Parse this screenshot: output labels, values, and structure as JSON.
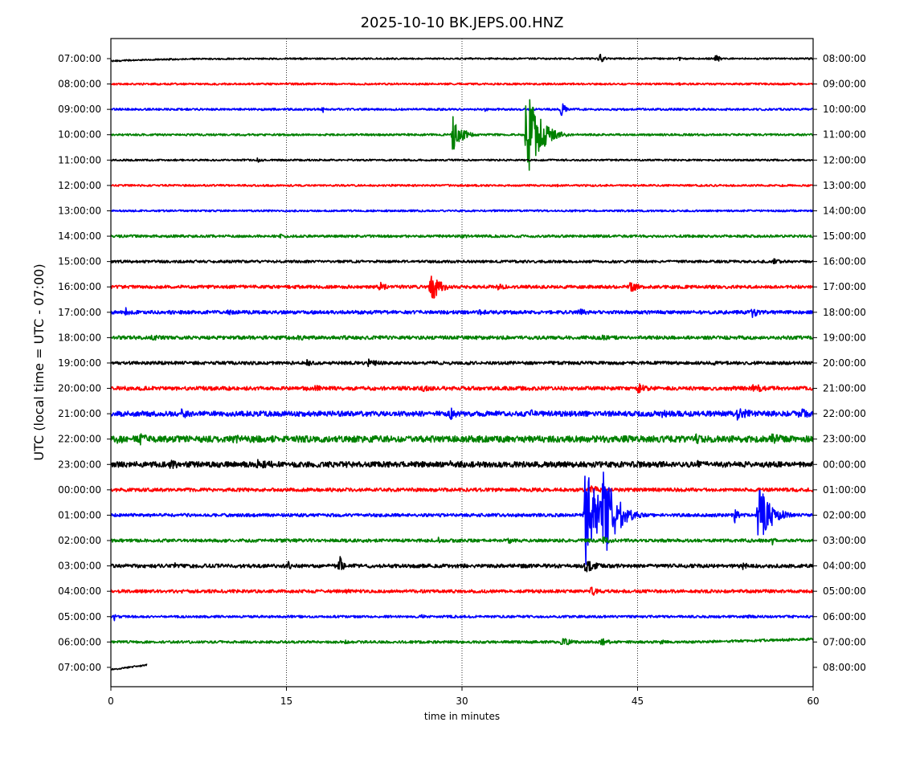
{
  "chart_data": {
    "type": "line",
    "title": "2025-10-10 BK.JEPS.00.HNZ",
    "xlabel": "time in minutes",
    "ylabel": "UTC (local time = UTC - 07:00)",
    "xlim": [
      0,
      60
    ],
    "xticks": [
      0,
      15,
      30,
      45,
      60
    ],
    "grid": "vertical dotted lines at 15, 30, 45",
    "trace_colors": [
      "#000000",
      "#ff0000",
      "#0000ff",
      "#008000"
    ],
    "left_labels": [
      "07:00:00",
      "08:00:00",
      "09:00:00",
      "10:00:00",
      "11:00:00",
      "12:00:00",
      "13:00:00",
      "14:00:00",
      "15:00:00",
      "16:00:00",
      "17:00:00",
      "18:00:00",
      "19:00:00",
      "20:00:00",
      "21:00:00",
      "22:00:00",
      "23:00:00",
      "00:00:00",
      "01:00:00",
      "02:00:00",
      "03:00:00",
      "04:00:00",
      "05:00:00",
      "06:00:00",
      "07:00:00"
    ],
    "right_labels": [
      "08:00:00",
      "09:00:00",
      "10:00:00",
      "11:00:00",
      "12:00:00",
      "13:00:00",
      "14:00:00",
      "15:00:00",
      "16:00:00",
      "17:00:00",
      "18:00:00",
      "19:00:00",
      "20:00:00",
      "21:00:00",
      "22:00:00",
      "23:00:00",
      "00:00:00",
      "01:00:00",
      "02:00:00",
      "03:00:00",
      "04:00:00",
      "05:00:00",
      "06:00:00",
      "07:00:00",
      "08:00:00"
    ],
    "series": [
      {
        "hour": "07:00:00",
        "end_minute": 60,
        "noise": 1.0,
        "drift": "rising",
        "events": [
          {
            "t": 41.7,
            "amp": 8,
            "dur": 0.6
          },
          {
            "t": 48.5,
            "amp": 4,
            "dur": 0.3
          },
          {
            "t": 51.7,
            "amp": 8,
            "dur": 0.4
          }
        ]
      },
      {
        "hour": "08:00:00",
        "end_minute": 60,
        "noise": 1.2,
        "events": [
          {
            "t": 48.6,
            "amp": 2,
            "dur": 0.3
          }
        ]
      },
      {
        "hour": "09:00:00",
        "end_minute": 60,
        "noise": 1.3,
        "events": [
          {
            "t": 18.1,
            "amp": 5,
            "dur": 0.3
          },
          {
            "t": 32.0,
            "amp": 4,
            "dur": 0.3
          },
          {
            "t": 38.5,
            "amp": 15,
            "dur": 0.4
          }
        ]
      },
      {
        "hour": "10:00:00",
        "end_minute": 60,
        "noise": 1.3,
        "events": [
          {
            "t": 29.2,
            "amp": 26,
            "dur": 1.0
          },
          {
            "t": 35.5,
            "amp": 64,
            "dur": 1.5
          }
        ]
      },
      {
        "hour": "11:00:00",
        "end_minute": 60,
        "noise": 1.1,
        "events": [
          {
            "t": 12.5,
            "amp": 3,
            "dur": 1.0
          }
        ]
      },
      {
        "hour": "12:00:00",
        "end_minute": 60,
        "noise": 1.2,
        "events": [
          {
            "t": 38.0,
            "amp": 4,
            "dur": 0.3
          }
        ]
      },
      {
        "hour": "13:00:00",
        "end_minute": 60,
        "noise": 1.2,
        "events": []
      },
      {
        "hour": "14:00:00",
        "end_minute": 60,
        "noise": 1.6,
        "events": [
          {
            "t": 14.5,
            "amp": 4,
            "dur": 0.3
          },
          {
            "t": 30.0,
            "amp": 3,
            "dur": 1.5
          }
        ]
      },
      {
        "hour": "15:00:00",
        "end_minute": 60,
        "noise": 1.6,
        "events": [
          {
            "t": 56.5,
            "amp": 4,
            "dur": 1.5
          }
        ]
      },
      {
        "hour": "16:00:00",
        "end_minute": 60,
        "noise": 2.0,
        "events": [
          {
            "t": 16.0,
            "amp": 3,
            "dur": 1.0
          },
          {
            "t": 23.0,
            "amp": 8,
            "dur": 0.8
          },
          {
            "t": 27.3,
            "amp": 20,
            "dur": 1.2
          },
          {
            "t": 33.0,
            "amp": 4,
            "dur": 2.5
          },
          {
            "t": 44.3,
            "amp": 7,
            "dur": 1.5
          },
          {
            "t": 51.0,
            "amp": 4,
            "dur": 1.0
          }
        ]
      },
      {
        "hour": "17:00:00",
        "end_minute": 60,
        "noise": 2.2,
        "events": [
          {
            "t": 1.3,
            "amp": 8,
            "dur": 0.4
          },
          {
            "t": 10.0,
            "amp": 4,
            "dur": 1.0
          },
          {
            "t": 31.5,
            "amp": 5,
            "dur": 1.0
          },
          {
            "t": 40.0,
            "amp": 5,
            "dur": 1.5
          },
          {
            "t": 54.8,
            "amp": 7,
            "dur": 1.0
          }
        ]
      },
      {
        "hour": "18:00:00",
        "end_minute": 60,
        "noise": 2.2,
        "events": [
          {
            "t": 3.5,
            "amp": 4,
            "dur": 2.0
          },
          {
            "t": 16.0,
            "amp": 4,
            "dur": 1.5
          },
          {
            "t": 19.5,
            "amp": 4,
            "dur": 1.5
          },
          {
            "t": 42.0,
            "amp": 4,
            "dur": 1.5
          }
        ]
      },
      {
        "hour": "19:00:00",
        "end_minute": 60,
        "noise": 2.0,
        "events": [
          {
            "t": 16.8,
            "amp": 6,
            "dur": 0.5
          },
          {
            "t": 22.0,
            "amp": 5,
            "dur": 2.0
          },
          {
            "t": 42.0,
            "amp": 3,
            "dur": 1.5
          },
          {
            "t": 51.5,
            "amp": 4,
            "dur": 0.5
          }
        ]
      },
      {
        "hour": "20:00:00",
        "end_minute": 60,
        "noise": 2.4,
        "events": [
          {
            "t": 16.5,
            "amp": 4,
            "dur": 1.5
          },
          {
            "t": 17.5,
            "amp": 7,
            "dur": 0.6
          },
          {
            "t": 26.5,
            "amp": 5,
            "dur": 1.5
          },
          {
            "t": 45.0,
            "amp": 7,
            "dur": 1.5
          },
          {
            "t": 54.8,
            "amp": 6,
            "dur": 2.5
          }
        ]
      },
      {
        "hour": "21:00:00",
        "end_minute": 60,
        "noise": 3.2,
        "events": [
          {
            "t": 6.0,
            "amp": 7,
            "dur": 1.5
          },
          {
            "t": 29.0,
            "amp": 8,
            "dur": 1.0
          },
          {
            "t": 35.8,
            "amp": 7,
            "dur": 1.0
          },
          {
            "t": 47.0,
            "amp": 6,
            "dur": 1.5
          },
          {
            "t": 53.5,
            "amp": 8,
            "dur": 2.5
          },
          {
            "t": 58.8,
            "amp": 9,
            "dur": 1.5
          }
        ]
      },
      {
        "hour": "22:00:00",
        "end_minute": 60,
        "noise": 4.0,
        "events": [
          {
            "t": 0.5,
            "amp": 8,
            "dur": 1.5
          },
          {
            "t": 2.5,
            "amp": 8,
            "dur": 1.5
          },
          {
            "t": 10.5,
            "amp": 8,
            "dur": 1.0
          },
          {
            "t": 11.8,
            "amp": 9,
            "dur": 1.0
          },
          {
            "t": 50.0,
            "amp": 7,
            "dur": 1.0
          },
          {
            "t": 56.5,
            "amp": 7,
            "dur": 2.5
          }
        ]
      },
      {
        "hour": "23:00:00",
        "end_minute": 60,
        "noise": 3.5,
        "events": [
          {
            "t": 5.0,
            "amp": 7,
            "dur": 2.0
          },
          {
            "t": 12.5,
            "amp": 8,
            "dur": 2.5
          },
          {
            "t": 20.0,
            "amp": 6,
            "dur": 1.0
          },
          {
            "t": 29.0,
            "amp": 5,
            "dur": 1.5
          },
          {
            "t": 45.0,
            "amp": 5,
            "dur": 1.5
          },
          {
            "t": 50.0,
            "amp": 6,
            "dur": 1.0
          }
        ]
      },
      {
        "hour": "00:00:00",
        "end_minute": 60,
        "noise": 2.2,
        "events": [
          {
            "t": 41.0,
            "amp": 6,
            "dur": 2.0
          }
        ]
      },
      {
        "hour": "01:00:00",
        "end_minute": 60,
        "noise": 2.0,
        "events": [
          {
            "t": 40.5,
            "amp": 70,
            "dur": 1.6
          },
          {
            "t": 42.0,
            "amp": 65,
            "dur": 1.6
          },
          {
            "t": 53.3,
            "amp": 10,
            "dur": 0.5
          },
          {
            "t": 55.3,
            "amp": 40,
            "dur": 1.5
          }
        ]
      },
      {
        "hour": "02:00:00",
        "end_minute": 60,
        "noise": 2.0,
        "events": [
          {
            "t": 28.0,
            "amp": 5,
            "dur": 0.3
          },
          {
            "t": 34.0,
            "amp": 6,
            "dur": 0.3
          },
          {
            "t": 42.0,
            "amp": 5,
            "dur": 2.0
          },
          {
            "t": 56.5,
            "amp": 6,
            "dur": 0.4
          }
        ]
      },
      {
        "hour": "03:00:00",
        "end_minute": 60,
        "noise": 2.3,
        "events": [
          {
            "t": 5.5,
            "amp": 5,
            "dur": 0.3
          },
          {
            "t": 15.2,
            "amp": 8,
            "dur": 0.3
          },
          {
            "t": 19.5,
            "amp": 16,
            "dur": 0.4
          },
          {
            "t": 40.5,
            "amp": 10,
            "dur": 1.5
          },
          {
            "t": 54.0,
            "amp": 5,
            "dur": 1.0
          }
        ]
      },
      {
        "hour": "04:00:00",
        "end_minute": 60,
        "noise": 2.0,
        "events": [
          {
            "t": 20.0,
            "amp": 4,
            "dur": 1.0
          },
          {
            "t": 41.0,
            "amp": 7,
            "dur": 1.0
          }
        ]
      },
      {
        "hour": "05:00:00",
        "end_minute": 60,
        "noise": 1.5,
        "events": [
          {
            "t": 0.3,
            "amp": 5,
            "dur": 0.3
          },
          {
            "t": 26.5,
            "amp": 4,
            "dur": 0.5
          },
          {
            "t": 54.5,
            "amp": 3,
            "dur": 0.5
          }
        ]
      },
      {
        "hour": "06:00:00",
        "end_minute": 60,
        "noise": 1.6,
        "drift": "rising-end",
        "events": [
          {
            "t": 20.0,
            "amp": 3,
            "dur": 1.5
          },
          {
            "t": 38.5,
            "amp": 6,
            "dur": 1.5
          },
          {
            "t": 41.8,
            "amp": 7,
            "dur": 1.0
          },
          {
            "t": 47.0,
            "amp": 4,
            "dur": 0.5
          }
        ]
      },
      {
        "hour": "07:00:00",
        "end_minute": 3.1,
        "noise": 1.0,
        "drift": "rising",
        "events": []
      }
    ]
  }
}
